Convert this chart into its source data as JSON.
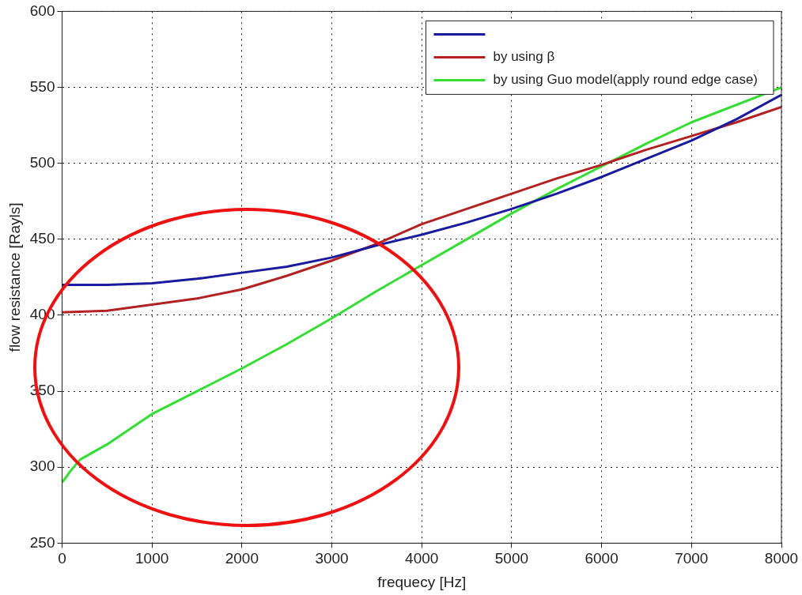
{
  "chart_data": {
    "type": "line",
    "xlabel": "frequecy [Hz]",
    "ylabel": "flow resistance [Rayls]",
    "xlim": [
      0,
      8000
    ],
    "xticks": [
      0,
      1000,
      2000,
      3000,
      4000,
      5000,
      6000,
      7000,
      8000
    ],
    "ylim": [
      250,
      600
    ],
    "yticks": [
      250,
      300,
      350,
      400,
      450,
      500,
      550,
      600
    ],
    "grid": true,
    "legend": "top right",
    "marker": "none",
    "line_style": "solid",
    "series": [
      {
        "color": "#1a1a9c",
        "x": [
          0,
          500,
          1000,
          1500,
          2000,
          2500,
          3000,
          3500,
          4000,
          4500,
          5000,
          5500,
          6000,
          6500,
          7000,
          7500,
          8000
        ],
        "values": [
          420,
          420,
          421,
          424,
          428,
          432,
          438,
          446,
          453,
          461,
          470,
          480,
          491,
          503,
          515,
          529,
          545
        ]
      },
      {
        "name": "by using β",
        "color": "#b22222",
        "x": [
          0,
          500,
          1000,
          1500,
          2000,
          2500,
          3000,
          3500,
          4000,
          4500,
          5000,
          5500,
          6000,
          6500,
          7000,
          7500,
          8000
        ],
        "values": [
          402,
          403,
          407,
          411,
          417,
          426,
          436,
          447,
          460,
          470,
          480,
          490,
          499,
          509,
          518,
          527,
          537
        ]
      },
      {
        "name": "by using Guo model(apply round edge case)",
        "color": "#33dd33",
        "x": [
          0,
          100,
          200,
          500,
          1000,
          1500,
          2000,
          2500,
          3000,
          3500,
          4000,
          4500,
          5000,
          5500,
          6000,
          6500,
          7000,
          8000
        ],
        "values": [
          290,
          298,
          305,
          315,
          335,
          350,
          365,
          381,
          398,
          416,
          433,
          450,
          467,
          483,
          498,
          513,
          527,
          550
        ]
      }
    ]
  }
}
